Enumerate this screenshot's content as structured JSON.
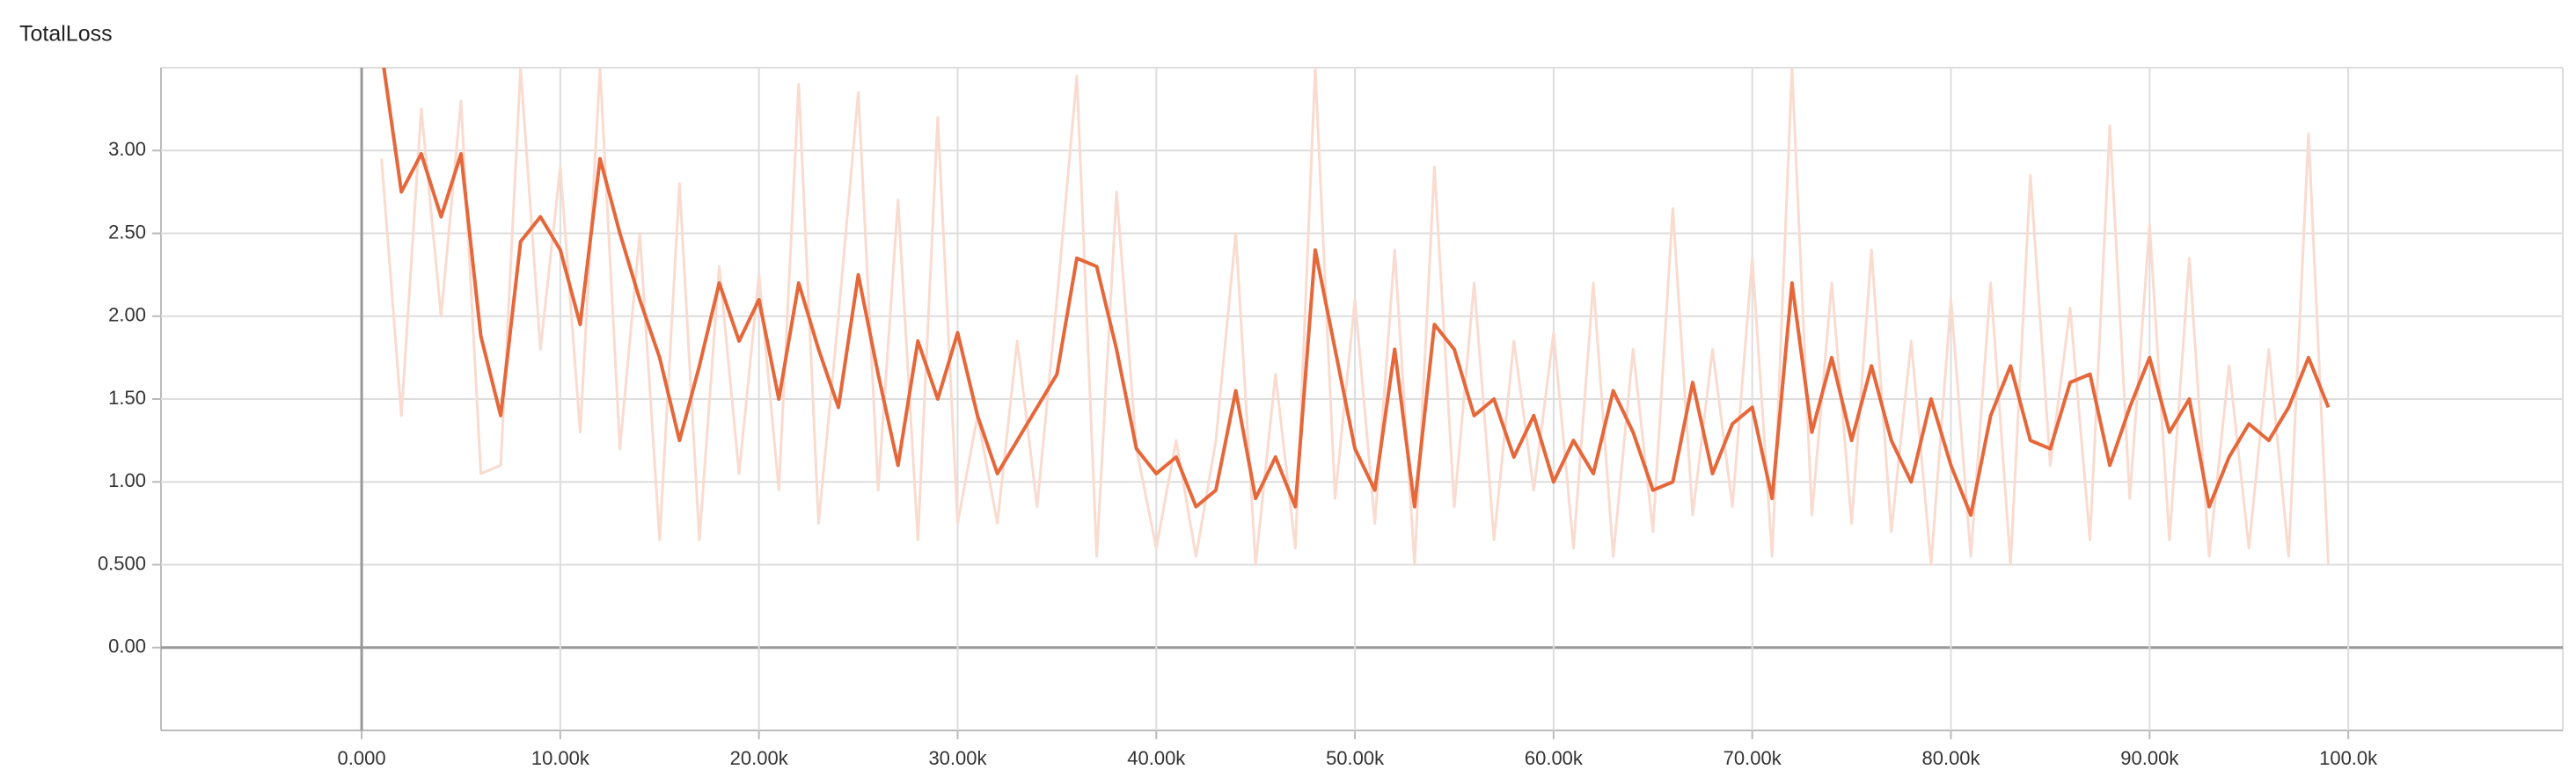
{
  "chart_data": {
    "type": "line",
    "title": "TotalLoss",
    "x": [
      1000,
      2000,
      3000,
      4000,
      5000,
      6000,
      7000,
      8000,
      9000,
      10000,
      11000,
      12000,
      13000,
      14000,
      15000,
      16000,
      17000,
      18000,
      19000,
      20000,
      21000,
      22000,
      23000,
      24000,
      25000,
      26000,
      27000,
      28000,
      29000,
      30000,
      31000,
      32000,
      33000,
      34000,
      35000,
      36000,
      37000,
      38000,
      39000,
      40000,
      41000,
      42000,
      43000,
      44000,
      45000,
      46000,
      47000,
      48000,
      49000,
      50000,
      51000,
      52000,
      53000,
      54000,
      55000,
      56000,
      57000,
      58000,
      59000,
      60000,
      61000,
      62000,
      63000,
      64000,
      65000,
      66000,
      67000,
      68000,
      69000,
      70000,
      71000,
      72000,
      73000,
      74000,
      75000,
      76000,
      77000,
      78000,
      79000,
      80000,
      81000,
      82000,
      83000,
      84000,
      85000,
      86000,
      87000,
      88000,
      89000,
      90000,
      91000,
      92000,
      93000,
      94000,
      95000,
      96000,
      97000,
      98000,
      99000
    ],
    "series": [
      {
        "color": "#f9dbd0",
        "values": [
          2.95,
          1.4,
          3.25,
          2.0,
          3.3,
          1.05,
          1.1,
          3.5,
          1.8,
          2.9,
          1.3,
          3.5,
          1.2,
          2.5,
          0.65,
          2.8,
          0.65,
          2.3,
          1.05,
          2.25,
          0.95,
          3.4,
          0.75,
          2.0,
          3.35,
          0.95,
          2.7,
          0.65,
          3.2,
          0.75,
          1.4,
          0.75,
          1.85,
          0.85,
          2.1,
          3.45,
          0.55,
          2.75,
          1.2,
          0.6,
          1.25,
          0.55,
          1.25,
          2.5,
          0.5,
          1.65,
          0.6,
          3.5,
          0.9,
          2.1,
          0.75,
          2.4,
          0.5,
          2.9,
          0.85,
          2.2,
          0.65,
          1.85,
          0.95,
          1.9,
          0.6,
          2.2,
          0.55,
          1.8,
          0.7,
          2.65,
          0.8,
          1.8,
          0.85,
          2.35,
          0.55,
          3.5,
          0.8,
          2.2,
          0.75,
          2.4,
          0.7,
          1.85,
          0.5,
          2.1,
          0.55,
          2.2,
          0.5,
          2.85,
          1.1,
          2.05,
          0.65,
          3.15,
          0.9,
          2.55,
          0.65,
          2.35,
          0.55,
          1.7,
          0.6,
          1.8,
          0.55,
          3.1,
          0.5
        ]
      },
      {
        "color": "#e5673a",
        "values": [
          3.6,
          2.75,
          2.98,
          2.6,
          2.98,
          1.88,
          1.4,
          2.45,
          2.6,
          2.4,
          1.95,
          2.95,
          2.5,
          2.1,
          1.75,
          1.25,
          1.7,
          2.2,
          1.85,
          2.1,
          1.5,
          2.2,
          1.8,
          1.45,
          2.25,
          1.65,
          1.1,
          1.85,
          1.5,
          1.9,
          1.4,
          1.05,
          1.25,
          1.45,
          1.65,
          2.35,
          2.3,
          1.8,
          1.2,
          1.05,
          1.15,
          0.85,
          0.95,
          1.55,
          0.9,
          1.15,
          0.85,
          2.4,
          1.8,
          1.2,
          0.95,
          1.8,
          0.85,
          1.95,
          1.8,
          1.4,
          1.5,
          1.15,
          1.4,
          1.0,
          1.25,
          1.05,
          1.55,
          1.3,
          0.95,
          1.0,
          1.6,
          1.05,
          1.35,
          1.45,
          0.9,
          2.2,
          1.3,
          1.75,
          1.25,
          1.7,
          1.25,
          1.0,
          1.5,
          1.1,
          0.8,
          1.4,
          1.7,
          1.25,
          1.2,
          1.6,
          1.65,
          1.1,
          1.45,
          1.75,
          1.3,
          1.5,
          0.85,
          1.15,
          1.35,
          1.25,
          1.45,
          1.75,
          1.45
        ]
      }
    ],
    "xlim": [
      -10100,
      110800
    ],
    "ylim": [
      -0.5,
      3.5
    ],
    "xticks": [
      {
        "value": 0,
        "label": "0.000"
      },
      {
        "value": 10000,
        "label": "10.00k"
      },
      {
        "value": 20000,
        "label": "20.00k"
      },
      {
        "value": 30000,
        "label": "30.00k"
      },
      {
        "value": 40000,
        "label": "40.00k"
      },
      {
        "value": 50000,
        "label": "50.00k"
      },
      {
        "value": 60000,
        "label": "60.00k"
      },
      {
        "value": 70000,
        "label": "70.00k"
      },
      {
        "value": 80000,
        "label": "80.00k"
      },
      {
        "value": 90000,
        "label": "90.00k"
      },
      {
        "value": 100000,
        "label": "100.0k"
      }
    ],
    "yticks": [
      {
        "value": 0,
        "label": "0.00"
      },
      {
        "value": 0.5,
        "label": "0.500"
      },
      {
        "value": 1,
        "label": "1.00"
      },
      {
        "value": 1.5,
        "label": "1.50"
      },
      {
        "value": 2,
        "label": "2.00"
      },
      {
        "value": 2.5,
        "label": "2.50"
      },
      {
        "value": 3,
        "label": "3.00"
      }
    ],
    "grid": true
  }
}
